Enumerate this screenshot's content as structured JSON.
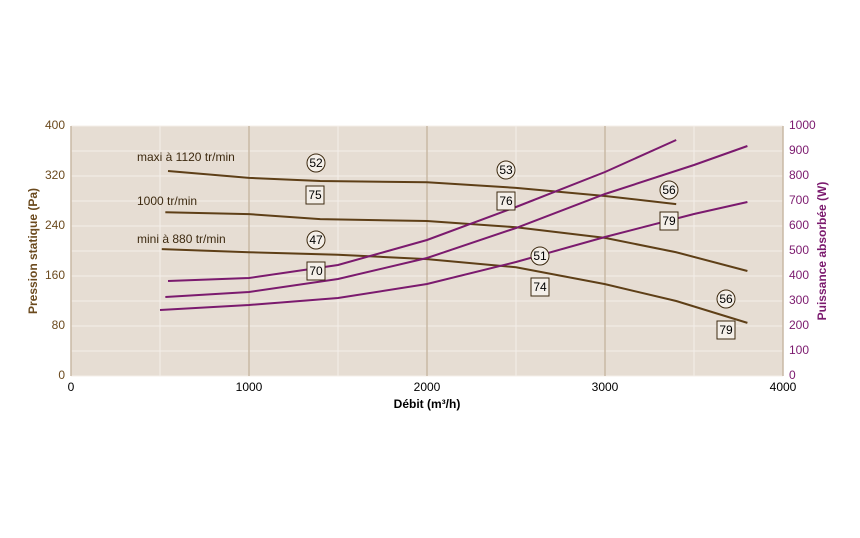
{
  "chart_data": {
    "type": "line",
    "xlabel": "Débit (m³/h)",
    "ylabel": "Pression statique (Pa)",
    "y2label": "Puissance absorbée (W)",
    "xlim": [
      0,
      4000
    ],
    "xticks": [
      0,
      1000,
      2000,
      3000,
      4000
    ],
    "xminorticks": [
      500,
      1500,
      2500,
      3500
    ],
    "ylim": [
      0,
      400
    ],
    "yticks": [
      0,
      80,
      160,
      240,
      320,
      400
    ],
    "y2lim": [
      0,
      1000
    ],
    "y2ticks": [
      0,
      100,
      200,
      300,
      400,
      500,
      600,
      700,
      800,
      900,
      1000
    ],
    "grid": true,
    "ycolor": "#6b4a1e",
    "y2color": "#7b1a6e",
    "series": [
      {
        "name": "maxi à 1120 tr/min",
        "color": "#5e3f17",
        "x": [
          545,
          1000,
          1400,
          2000,
          2500,
          3000,
          3400
        ],
        "values": [
          328,
          317,
          312,
          310,
          301,
          288,
          275
        ]
      },
      {
        "name": "1000 tr/min",
        "color": "#5e3f17",
        "x": [
          530,
          1000,
          1400,
          2000,
          2500,
          3000,
          3400,
          3800
        ],
        "values": [
          262,
          259,
          251,
          248,
          238,
          221,
          198,
          168
        ]
      },
      {
        "name": "mini à 880 tr/min",
        "color": "#5e3f17",
        "x": [
          510,
          1000,
          1500,
          2000,
          2500,
          3000,
          3400,
          3800
        ],
        "values": [
          203,
          198,
          194,
          187,
          174,
          147,
          120,
          85
        ]
      },
      {
        "name": null,
        "color": "#7b1a6e",
        "axis": "y2",
        "x": [
          545,
          1000,
          1500,
          2000,
          2500,
          3000,
          3400
        ],
        "values": [
          380,
          392,
          444,
          544,
          676,
          816,
          944
        ]
      },
      {
        "name": null,
        "color": "#7b1a6e",
        "axis": "y2",
        "x": [
          530,
          1000,
          1500,
          2000,
          2500,
          3000,
          3500,
          3800
        ],
        "values": [
          316,
          336,
          388,
          472,
          592,
          728,
          844,
          920
        ]
      },
      {
        "name": null,
        "color": "#7b1a6e",
        "axis": "y2",
        "x": [
          500,
          1000,
          1500,
          2000,
          2500,
          3000,
          3500,
          3800
        ],
        "values": [
          264,
          284,
          312,
          368,
          456,
          556,
          648,
          696
        ]
      }
    ],
    "annotations": [
      {
        "text": "52",
        "shape": "circle"
      },
      {
        "text": "53",
        "shape": "circle"
      },
      {
        "text": "56",
        "shape": "circle"
      },
      {
        "text": "47",
        "shape": "circle"
      },
      {
        "text": "51",
        "shape": "circle"
      },
      {
        "text": "56",
        "shape": "circle"
      },
      {
        "text": "75",
        "shape": "box"
      },
      {
        "text": "76",
        "shape": "box"
      },
      {
        "text": "79",
        "shape": "box"
      },
      {
        "text": "70",
        "shape": "box"
      },
      {
        "text": "74",
        "shape": "box"
      },
      {
        "text": "79",
        "shape": "box"
      }
    ]
  }
}
